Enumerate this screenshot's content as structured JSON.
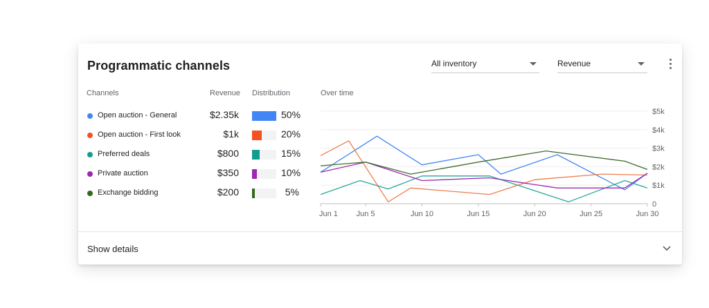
{
  "card": {
    "title": "Programmatic channels",
    "inventory_select": {
      "value": "All inventory",
      "icon": "chevron-down-icon"
    },
    "metric_select": {
      "value": "Revenue",
      "icon": "chevron-down-icon"
    },
    "menu_icon": "more-vert-icon",
    "show_details": "Show details",
    "expand_icon": "chevron-down-icon"
  },
  "table": {
    "headers": {
      "channels": "Channels",
      "revenue": "Revenue",
      "distribution": "Distribution",
      "over_time": "Over time"
    },
    "rows": [
      {
        "channel": "Open auction - General",
        "revenue": "$2.35k",
        "share": 50,
        "share_label": "50%",
        "color": "#4285f4"
      },
      {
        "channel": "Open auction - First look",
        "revenue": "$1k",
        "share": 20,
        "share_label": "20%",
        "color": "#f4511e"
      },
      {
        "channel": "Preferred deals",
        "revenue": "$800",
        "share": 15,
        "share_label": "15%",
        "color": "#129d8f"
      },
      {
        "channel": "Private auction",
        "revenue": "$350",
        "share": 10,
        "share_label": "10%",
        "color": "#9c27b0"
      },
      {
        "channel": "Exchange bidding",
        "revenue": "$200",
        "share": 5,
        "share_label": "5%",
        "color": "#33691e"
      }
    ]
  },
  "chart_data": {
    "type": "line",
    "x_ticks": [
      "Jun 1",
      "Jun 5",
      "Jun 10",
      "Jun 15",
      "Jun 20",
      "Jun 25",
      "Jun 30"
    ],
    "x_tick_days": [
      1,
      5,
      10,
      15,
      20,
      25,
      30
    ],
    "xlim": [
      1,
      30
    ],
    "y_ticks": [
      "0",
      "$1k",
      "$2k",
      "$3k",
      "$4k",
      "$5k"
    ],
    "y_tick_values": [
      0,
      1000,
      2000,
      3000,
      4000,
      5000
    ],
    "ylim": [
      0,
      5000
    ],
    "grid": true,
    "series": [
      {
        "color": "#4285f4",
        "x": [
          1,
          6,
          10,
          15,
          17,
          22,
          28,
          30
        ],
        "y": [
          1700,
          3650,
          2100,
          2650,
          1600,
          2650,
          750,
          1650
        ]
      },
      {
        "color": "#ee7d4b",
        "x": [
          1,
          3.5,
          7,
          9,
          16,
          20,
          26,
          30
        ],
        "y": [
          2600,
          3400,
          100,
          850,
          500,
          1300,
          1600,
          1550
        ]
      },
      {
        "color": "#26a69a",
        "x": [
          1,
          4.5,
          7,
          10,
          16,
          23,
          28,
          30
        ],
        "y": [
          500,
          1250,
          800,
          1500,
          1500,
          100,
          1250,
          850
        ]
      },
      {
        "color": "#9c27b0",
        "x": [
          1,
          5,
          10,
          16,
          22,
          28,
          30
        ],
        "y": [
          1700,
          2250,
          1250,
          1400,
          850,
          850,
          1650
        ]
      },
      {
        "color": "#3e6b2a",
        "x": [
          1,
          5,
          9,
          15,
          21,
          28,
          30
        ],
        "y": [
          2050,
          2250,
          1600,
          2250,
          2850,
          2300,
          1850
        ]
      }
    ]
  }
}
